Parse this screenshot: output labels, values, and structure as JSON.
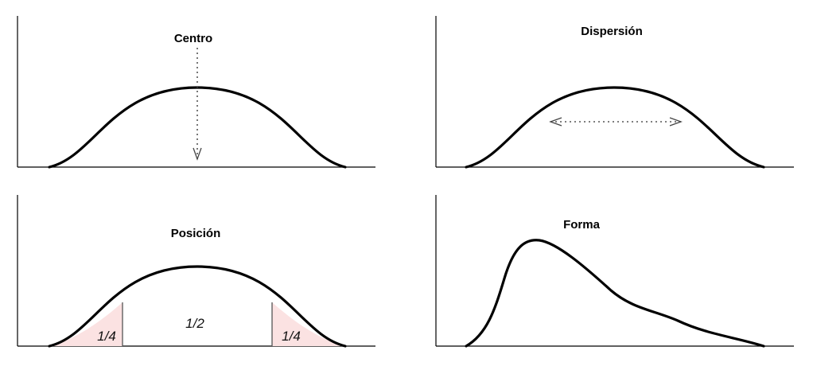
{
  "panels": {
    "centro": {
      "title": "Centro"
    },
    "dispersion": {
      "title": "Dispersión"
    },
    "posicion": {
      "title": "Posición",
      "left_fraction": "1/4",
      "middle_fraction": "1/2",
      "right_fraction": "1/4"
    },
    "forma": {
      "title": "Forma"
    }
  },
  "colors": {
    "curve": "#000000",
    "tail_shading": "#fbe2e2"
  }
}
